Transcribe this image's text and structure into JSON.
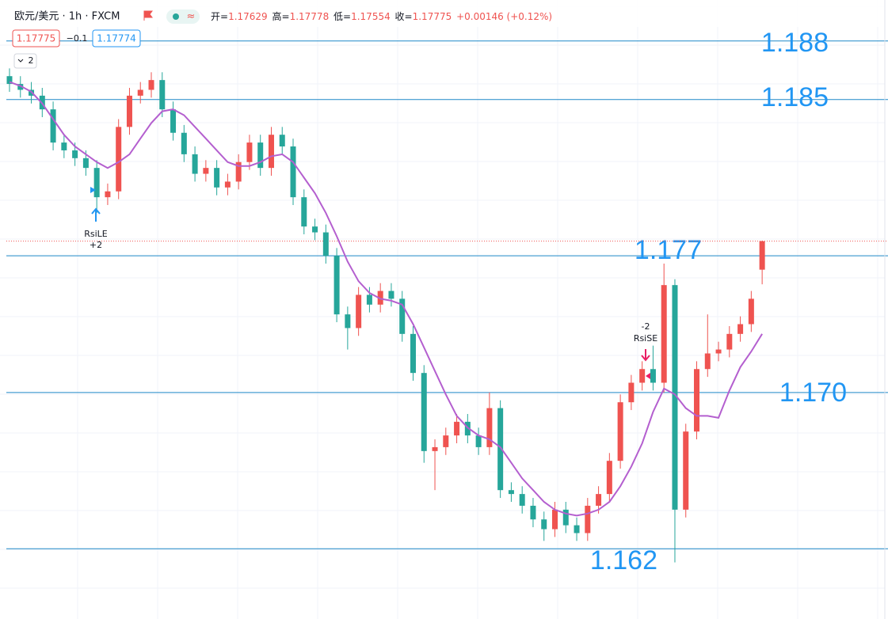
{
  "chart_data": {
    "type": "candlestick",
    "header": {
      "symbol": "欧元/美元 · 1h · FXCM",
      "ohlc": [
        [
          "开=",
          "1.17629"
        ],
        [
          "高=",
          "1.17778"
        ],
        [
          "低=",
          "1.17554"
        ],
        [
          "收=",
          "1.17775"
        ]
      ],
      "change": "+0.00146 (+0.12%)",
      "bid_tag": "1.17775",
      "spread": "−0.1",
      "ask_tag": "1.17774",
      "indicator_count": "2"
    },
    "signals": [
      {
        "name": "RsiLE",
        "qty": "+2"
      },
      {
        "name": "RsiSE",
        "qty": "-2"
      }
    ],
    "ylim": [
      1.1584,
      1.1901
    ],
    "up_color": "#ef5350",
    "down_color": "#26a69a",
    "ma_color": "#b45fcf",
    "level_color": "#1e88c8",
    "last_price": 1.17775,
    "levels": [
      1.188,
      1.185,
      1.177,
      {
        "value": 1.17,
        "label": "1.170"
      },
      1.162
    ],
    "open": [
      1.1862,
      1.1858,
      1.1855,
      1.1852,
      1.1845,
      1.1828,
      1.1824,
      1.182,
      1.1815,
      1.18,
      1.1803,
      1.1836,
      1.1852,
      1.1855,
      1.186,
      1.1845,
      1.1833,
      1.1822,
      1.1812,
      1.1815,
      1.1805,
      1.1808,
      1.1818,
      1.1828,
      1.1815,
      1.1832,
      1.1826,
      1.18,
      1.1785,
      1.1782,
      1.177,
      1.174,
      1.1733,
      1.175,
      1.1745,
      1.1752,
      1.1748,
      1.173,
      1.171,
      1.167,
      1.1672,
      1.1678,
      1.1685,
      1.1678,
      1.1672,
      1.1692,
      1.165,
      1.1648,
      1.1642,
      1.1635,
      1.163,
      1.164,
      1.1632,
      1.1628,
      1.1642,
      1.1648,
      1.1665,
      1.1695,
      1.1705,
      1.1712,
      1.1705,
      1.1755,
      1.164,
      1.168,
      1.1712,
      1.172,
      1.1722,
      1.173,
      1.1735,
      1.17629
    ],
    "high": [
      1.1866,
      1.1862,
      1.1859,
      1.1856,
      1.1849,
      1.1832,
      1.1828,
      1.1824,
      1.1819,
      1.1807,
      1.184,
      1.1856,
      1.1859,
      1.1864,
      1.1864,
      1.1849,
      1.1837,
      1.1826,
      1.1819,
      1.1819,
      1.1812,
      1.1822,
      1.1832,
      1.1832,
      1.1836,
      1.1836,
      1.183,
      1.1804,
      1.1789,
      1.1786,
      1.1774,
      1.1744,
      1.1754,
      1.1754,
      1.1756,
      1.1756,
      1.1752,
      1.1734,
      1.1714,
      1.1676,
      1.1682,
      1.1689,
      1.1689,
      1.1682,
      1.17,
      1.1696,
      1.1654,
      1.1652,
      1.1646,
      1.1639,
      1.1644,
      1.1644,
      1.1636,
      1.1646,
      1.1652,
      1.1669,
      1.1699,
      1.1709,
      1.1716,
      1.1724,
      1.1766,
      1.1758,
      1.1684,
      1.1716,
      1.174,
      1.1726,
      1.1734,
      1.1739,
      1.1752,
      1.17778
    ],
    "low": [
      1.1854,
      1.1851,
      1.1848,
      1.1841,
      1.1824,
      1.182,
      1.1816,
      1.1811,
      1.1792,
      1.1796,
      1.1799,
      1.1832,
      1.1848,
      1.1851,
      1.1841,
      1.1829,
      1.1818,
      1.1808,
      1.1808,
      1.1801,
      1.1801,
      1.1804,
      1.1814,
      1.1811,
      1.1811,
      1.1822,
      1.1796,
      1.1781,
      1.1778,
      1.1766,
      1.1736,
      1.1722,
      1.1729,
      1.1741,
      1.1741,
      1.1744,
      1.1726,
      1.1706,
      1.1664,
      1.165,
      1.1668,
      1.1674,
      1.1674,
      1.1668,
      1.1668,
      1.1646,
      1.1644,
      1.1638,
      1.1631,
      1.1624,
      1.1626,
      1.1628,
      1.1624,
      1.1624,
      1.1638,
      1.1644,
      1.1661,
      1.1691,
      1.1701,
      1.1701,
      1.17,
      1.1613,
      1.1636,
      1.1676,
      1.1708,
      1.1716,
      1.1718,
      1.1726,
      1.1731,
      1.17554
    ],
    "close": [
      1.1858,
      1.1855,
      1.1852,
      1.1845,
      1.1828,
      1.1824,
      1.182,
      1.1815,
      1.18,
      1.1803,
      1.1836,
      1.1852,
      1.1855,
      1.186,
      1.1845,
      1.1833,
      1.1822,
      1.1812,
      1.1815,
      1.1805,
      1.1808,
      1.1818,
      1.1828,
      1.1815,
      1.1832,
      1.1826,
      1.18,
      1.1785,
      1.1782,
      1.177,
      1.174,
      1.1733,
      1.175,
      1.1745,
      1.1752,
      1.1748,
      1.173,
      1.171,
      1.167,
      1.1672,
      1.1678,
      1.1685,
      1.1678,
      1.1672,
      1.1692,
      1.165,
      1.1648,
      1.1642,
      1.1635,
      1.163,
      1.164,
      1.1632,
      1.1628,
      1.1642,
      1.1648,
      1.1665,
      1.1695,
      1.1705,
      1.1712,
      1.1705,
      1.1755,
      1.164,
      1.168,
      1.1712,
      1.172,
      1.1722,
      1.173,
      1.1735,
      1.1748,
      1.17775
    ],
    "ma": [
      1.1859,
      1.1857,
      1.1854,
      1.1848,
      1.184,
      1.1832,
      1.1826,
      1.1822,
      1.1818,
      1.1815,
      1.1818,
      1.1822,
      1.183,
      1.1838,
      1.1844,
      1.1845,
      1.1842,
      1.1836,
      1.183,
      1.1824,
      1.1818,
      1.1816,
      1.1816,
      1.1818,
      1.1821,
      1.1822,
      1.1818,
      1.181,
      1.1802,
      1.1792,
      1.178,
      1.1767,
      1.1757,
      1.1751,
      1.1748,
      1.1747,
      1.1745,
      1.1735,
      1.1723,
      1.1711,
      1.1699,
      1.1688,
      1.1682,
      1.1678,
      1.1676,
      1.1672,
      1.1664,
      1.1656,
      1.165,
      1.1644,
      1.164,
      1.1638,
      1.1637,
      1.1638,
      1.164,
      1.1644,
      1.1652,
      1.1662,
      1.1674,
      1.169,
      1.1702,
      1.1699,
      1.1692,
      1.1688,
      1.1688,
      1.1687,
      1.1701,
      1.1713,
      1.1721,
      1.173
    ]
  }
}
